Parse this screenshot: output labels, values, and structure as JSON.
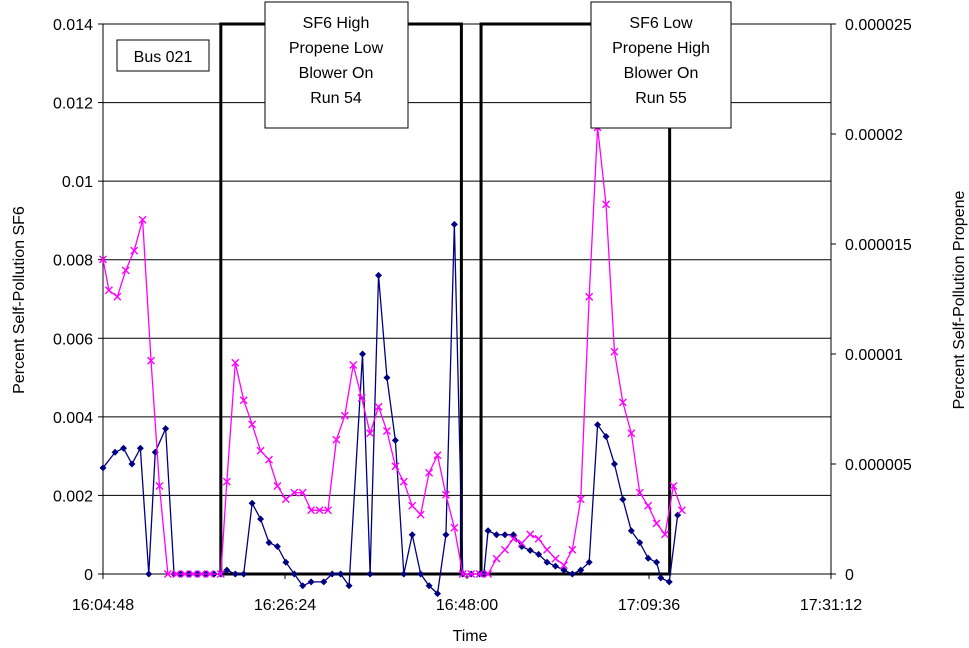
{
  "chart_data": {
    "type": "line",
    "xlabel": "Time",
    "ylabel": "Percent Self-Pollution SF6",
    "y2label": "Percent Self-Pollution Propene",
    "xlim": [
      "16:04:48",
      "17:31:12"
    ],
    "x_ticks": [
      "16:04:48",
      "16:26:24",
      "16:48:00",
      "17:09:36",
      "17:31:12"
    ],
    "ylim": [
      0,
      0.014
    ],
    "y_ticks": [
      "0",
      "0.002",
      "0.004",
      "0.006",
      "0.008",
      "0.01",
      "0.012",
      "0.014"
    ],
    "y2lim": [
      0,
      2.5e-05
    ],
    "y2_ticks": [
      "0",
      "0.000005",
      "0.00001",
      "0.000015",
      "0.00002",
      "0.000025"
    ],
    "grid": "horizontal",
    "colors": {
      "sf6": "#000080",
      "propene": "#FF00FF",
      "frame": "#000000"
    },
    "label_box": "Bus  021",
    "annotations": [
      {
        "lines": [
          "SF6 High",
          "Propene Low",
          "Blower On",
          "Run 54"
        ]
      },
      {
        "lines": [
          "SF6 Low",
          "Propene High",
          "Blower On",
          "Run 55"
        ]
      }
    ],
    "run_periods": [
      {
        "start": "16:18:47",
        "end": "16:47:20"
      },
      {
        "start": "16:49:40",
        "end": "17:12:03"
      }
    ],
    "series": [
      {
        "marker": "diamond",
        "axis": "left",
        "points": [
          [
            "16:04:48",
            0.0027
          ],
          [
            "16:06:14",
            0.0031
          ],
          [
            "16:07:14",
            0.0032
          ],
          [
            "16:08:14",
            0.0028
          ],
          [
            "16:09:14",
            0.0032
          ],
          [
            "16:10:14",
            0.0
          ],
          [
            "16:11:00",
            0.0031
          ],
          [
            "16:12:14",
            0.0037
          ],
          [
            "16:13:14",
            0.0
          ],
          [
            "16:14:00",
            0.0
          ],
          [
            "16:15:00",
            0.0
          ],
          [
            "16:16:00",
            0.0
          ],
          [
            "16:17:00",
            0.0
          ],
          [
            "16:18:00",
            0.0
          ],
          [
            "16:18:47",
            0.0
          ],
          [
            "16:19:30",
            0.0001
          ],
          [
            "16:20:30",
            0.0
          ],
          [
            "16:21:30",
            0.0
          ],
          [
            "16:22:30",
            0.0018
          ],
          [
            "16:23:30",
            0.0014
          ],
          [
            "16:24:30",
            0.0008
          ],
          [
            "16:25:30",
            0.0007
          ],
          [
            "16:26:30",
            0.0003
          ],
          [
            "16:27:30",
            0.0
          ],
          [
            "16:28:30",
            -0.0003
          ],
          [
            "16:29:30",
            -0.0002
          ],
          [
            "16:31:00",
            -0.0002
          ],
          [
            "16:32:00",
            0.0
          ],
          [
            "16:33:00",
            0.0
          ],
          [
            "16:34:00",
            -0.0003
          ],
          [
            "16:35:36",
            0.0056
          ],
          [
            "16:36:30",
            0.0
          ],
          [
            "16:37:30",
            0.0076
          ],
          [
            "16:38:30",
            0.005
          ],
          [
            "16:39:30",
            0.0034
          ],
          [
            "16:40:30",
            0.0
          ],
          [
            "16:41:30",
            0.001
          ],
          [
            "16:42:30",
            0.0
          ],
          [
            "16:43:30",
            -0.0003
          ],
          [
            "16:44:30",
            -0.0005
          ],
          [
            "16:45:30",
            0.001
          ],
          [
            "16:46:30",
            0.0089
          ],
          [
            "16:47:30",
            0.0
          ],
          [
            "16:48:30",
            0.0
          ],
          [
            "16:49:30",
            0.0
          ],
          [
            "16:50:00",
            0.0
          ],
          [
            "16:50:30",
            0.0011
          ],
          [
            "16:51:30",
            0.001
          ],
          [
            "16:52:30",
            0.001
          ],
          [
            "16:53:30",
            0.001
          ],
          [
            "16:54:30",
            0.0007
          ],
          [
            "16:55:30",
            0.0006
          ],
          [
            "16:56:30",
            0.0005
          ],
          [
            "16:57:30",
            0.0003
          ],
          [
            "16:58:30",
            0.0002
          ],
          [
            "16:59:30",
            0.0001
          ],
          [
            "17:00:30",
            0.0
          ],
          [
            "17:01:30",
            0.0001
          ],
          [
            "17:02:30",
            0.0003
          ],
          [
            "17:03:30",
            0.0038
          ],
          [
            "17:04:30",
            0.0035
          ],
          [
            "17:05:30",
            0.0028
          ],
          [
            "17:06:30",
            0.0019
          ],
          [
            "17:07:30",
            0.0011
          ],
          [
            "17:08:30",
            0.0008
          ],
          [
            "17:09:30",
            0.0004
          ],
          [
            "17:10:30",
            0.0003
          ],
          [
            "17:11:00",
            -0.0001
          ],
          [
            "17:12:00",
            -0.0002
          ],
          [
            "17:13:00",
            0.0015
          ]
        ]
      },
      {
        "marker": "x",
        "axis": "right",
        "points": [
          [
            "16:04:48",
            1.43e-05
          ],
          [
            "16:05:30",
            1.29e-05
          ],
          [
            "16:06:30",
            1.26e-05
          ],
          [
            "16:07:30",
            1.38e-05
          ],
          [
            "16:08:30",
            1.47e-05
          ],
          [
            "16:09:30",
            1.61e-05
          ],
          [
            "16:10:30",
            9.7e-06
          ],
          [
            "16:11:30",
            4e-06
          ],
          [
            "16:12:30",
            0.0
          ],
          [
            "16:13:30",
            0.0
          ],
          [
            "16:14:30",
            0.0
          ],
          [
            "16:15:30",
            0.0
          ],
          [
            "16:16:30",
            0.0
          ],
          [
            "16:17:30",
            0.0
          ],
          [
            "16:18:47",
            0.0
          ],
          [
            "16:19:30",
            4.2e-06
          ],
          [
            "16:20:30",
            9.6e-06
          ],
          [
            "16:21:30",
            7.9e-06
          ],
          [
            "16:22:30",
            6.8e-06
          ],
          [
            "16:23:30",
            5.6e-06
          ],
          [
            "16:24:30",
            5.2e-06
          ],
          [
            "16:25:30",
            4e-06
          ],
          [
            "16:26:30",
            3.4e-06
          ],
          [
            "16:27:30",
            3.7e-06
          ],
          [
            "16:28:30",
            3.7e-06
          ],
          [
            "16:29:30",
            2.9e-06
          ],
          [
            "16:30:30",
            2.9e-06
          ],
          [
            "16:31:30",
            2.9e-06
          ],
          [
            "16:32:30",
            6.1e-06
          ],
          [
            "16:33:30",
            7.2e-06
          ],
          [
            "16:34:30",
            9.5e-06
          ],
          [
            "16:35:30",
            8e-06
          ],
          [
            "16:36:30",
            6.4e-06
          ],
          [
            "16:37:30",
            7.6e-06
          ],
          [
            "16:38:30",
            6.5e-06
          ],
          [
            "16:39:30",
            4.9e-06
          ],
          [
            "16:40:30",
            4.2e-06
          ],
          [
            "16:41:30",
            3.1e-06
          ],
          [
            "16:42:30",
            2.7e-06
          ],
          [
            "16:43:30",
            4.6e-06
          ],
          [
            "16:44:30",
            5.4e-06
          ],
          [
            "16:45:30",
            3.6e-06
          ],
          [
            "16:46:30",
            2.1e-06
          ],
          [
            "16:47:30",
            0.0
          ],
          [
            "16:48:30",
            0.0
          ],
          [
            "16:49:30",
            0.0
          ],
          [
            "16:50:30",
            0.0
          ],
          [
            "16:51:30",
            7e-07
          ],
          [
            "16:52:30",
            1.1e-06
          ],
          [
            "16:53:30",
            1.6e-06
          ],
          [
            "16:54:30",
            1.4e-06
          ],
          [
            "16:55:30",
            1.8e-06
          ],
          [
            "16:56:30",
            1.6e-06
          ],
          [
            "16:57:30",
            1.1e-06
          ],
          [
            "16:58:30",
            7e-07
          ],
          [
            "16:59:30",
            4e-07
          ],
          [
            "17:00:30",
            1.1e-06
          ],
          [
            "17:01:30",
            3.4e-06
          ],
          [
            "17:02:30",
            1.26e-05
          ],
          [
            "17:03:30",
            2.03e-05
          ],
          [
            "17:04:30",
            1.68e-05
          ],
          [
            "17:05:30",
            1.01e-05
          ],
          [
            "17:06:30",
            7.8e-06
          ],
          [
            "17:07:30",
            6.4e-06
          ],
          [
            "17:08:30",
            3.7e-06
          ],
          [
            "17:09:30",
            3.1e-06
          ],
          [
            "17:10:30",
            2.3e-06
          ],
          [
            "17:11:30",
            1.8e-06
          ],
          [
            "17:12:30",
            4e-06
          ],
          [
            "17:13:30",
            2.9e-06
          ]
        ]
      }
    ]
  }
}
